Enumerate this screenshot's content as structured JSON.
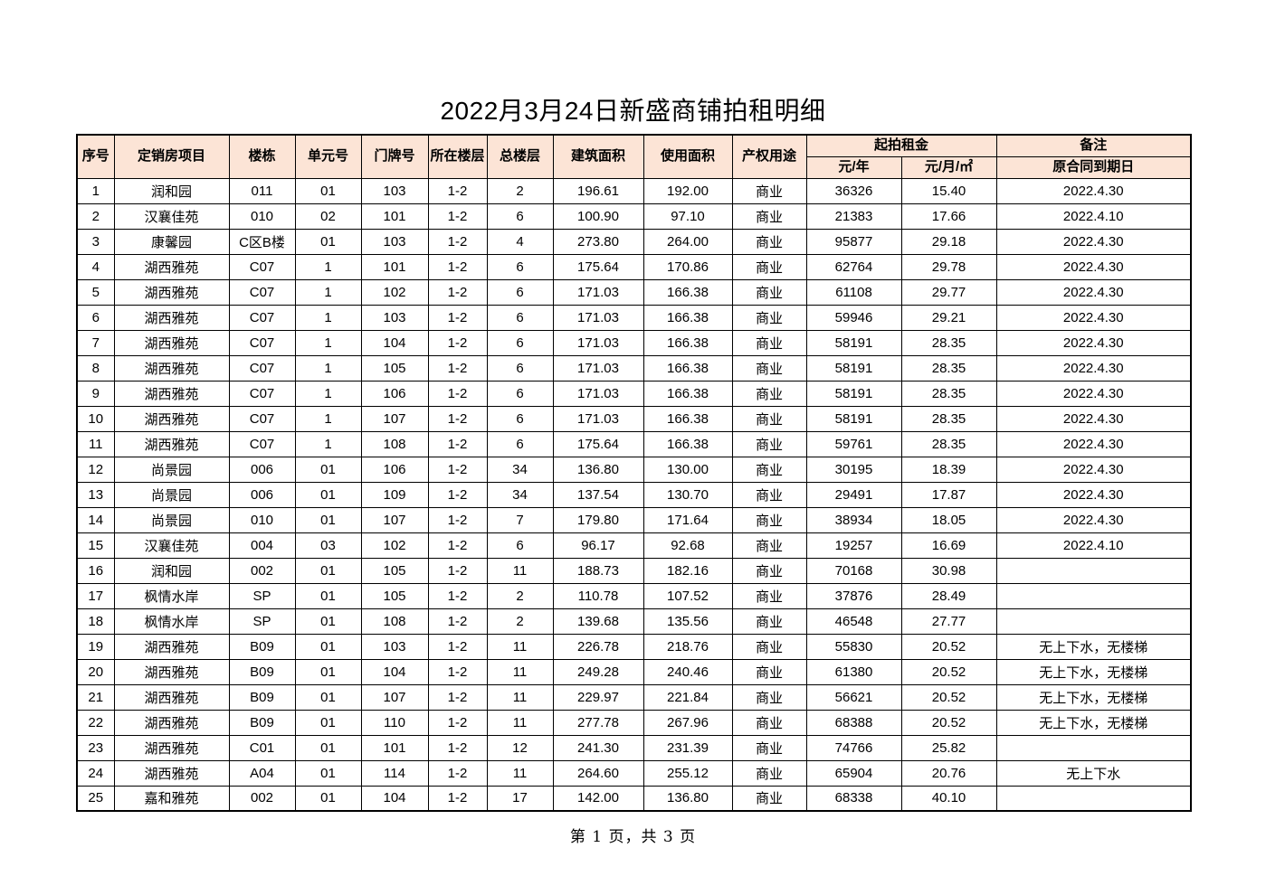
{
  "title": "2022月3月24日新盛商铺拍租明细",
  "footer": "第 1 页，共 3 页",
  "colors": {
    "header_bg": "#fce4d6",
    "border": "#000000",
    "text": "#000000",
    "page_bg": "#ffffff"
  },
  "table": {
    "headers": {
      "xuhao": "序号",
      "project": "定销房项目",
      "building": "楼栋",
      "unit": "单元号",
      "door": "门牌号",
      "floor": "所在楼层",
      "total_floors": "总楼层",
      "build_area": "建筑面积",
      "use_area": "使用面积",
      "usage": "产权用途",
      "rent_group": "起拍租金",
      "rent_year": "元/年",
      "rent_month": "元/月/㎡",
      "remark_group": "备注",
      "remark_sub": "原合同到期日"
    },
    "rows": [
      [
        "1",
        "润和园",
        "011",
        "01",
        "103",
        "1-2",
        "2",
        "196.61",
        "192.00",
        "商业",
        "36326",
        "15.40",
        "2022.4.30"
      ],
      [
        "2",
        "汉襄佳苑",
        "010",
        "02",
        "101",
        "1-2",
        "6",
        "100.90",
        "97.10",
        "商业",
        "21383",
        "17.66",
        "2022.4.10"
      ],
      [
        "3",
        "康馨园",
        "C区B楼",
        "01",
        "103",
        "1-2",
        "4",
        "273.80",
        "264.00",
        "商业",
        "95877",
        "29.18",
        "2022.4.30"
      ],
      [
        "4",
        "湖西雅苑",
        "C07",
        "1",
        "101",
        "1-2",
        "6",
        "175.64",
        "170.86",
        "商业",
        "62764",
        "29.78",
        "2022.4.30"
      ],
      [
        "5",
        "湖西雅苑",
        "C07",
        "1",
        "102",
        "1-2",
        "6",
        "171.03",
        "166.38",
        "商业",
        "61108",
        "29.77",
        "2022.4.30"
      ],
      [
        "6",
        "湖西雅苑",
        "C07",
        "1",
        "103",
        "1-2",
        "6",
        "171.03",
        "166.38",
        "商业",
        "59946",
        "29.21",
        "2022.4.30"
      ],
      [
        "7",
        "湖西雅苑",
        "C07",
        "1",
        "104",
        "1-2",
        "6",
        "171.03",
        "166.38",
        "商业",
        "58191",
        "28.35",
        "2022.4.30"
      ],
      [
        "8",
        "湖西雅苑",
        "C07",
        "1",
        "105",
        "1-2",
        "6",
        "171.03",
        "166.38",
        "商业",
        "58191",
        "28.35",
        "2022.4.30"
      ],
      [
        "9",
        "湖西雅苑",
        "C07",
        "1",
        "106",
        "1-2",
        "6",
        "171.03",
        "166.38",
        "商业",
        "58191",
        "28.35",
        "2022.4.30"
      ],
      [
        "10",
        "湖西雅苑",
        "C07",
        "1",
        "107",
        "1-2",
        "6",
        "171.03",
        "166.38",
        "商业",
        "58191",
        "28.35",
        "2022.4.30"
      ],
      [
        "11",
        "湖西雅苑",
        "C07",
        "1",
        "108",
        "1-2",
        "6",
        "175.64",
        "166.38",
        "商业",
        "59761",
        "28.35",
        "2022.4.30"
      ],
      [
        "12",
        "尚景园",
        "006",
        "01",
        "106",
        "1-2",
        "34",
        "136.80",
        "130.00",
        "商业",
        "30195",
        "18.39",
        "2022.4.30"
      ],
      [
        "13",
        "尚景园",
        "006",
        "01",
        "109",
        "1-2",
        "34",
        "137.54",
        "130.70",
        "商业",
        "29491",
        "17.87",
        "2022.4.30"
      ],
      [
        "14",
        "尚景园",
        "010",
        "01",
        "107",
        "1-2",
        "7",
        "179.80",
        "171.64",
        "商业",
        "38934",
        "18.05",
        "2022.4.30"
      ],
      [
        "15",
        "汉襄佳苑",
        "004",
        "03",
        "102",
        "1-2",
        "6",
        "96.17",
        "92.68",
        "商业",
        "19257",
        "16.69",
        "2022.4.10"
      ],
      [
        "16",
        "润和园",
        "002",
        "01",
        "105",
        "1-2",
        "11",
        "188.73",
        "182.16",
        "商业",
        "70168",
        "30.98",
        ""
      ],
      [
        "17",
        "枫情水岸",
        "SP",
        "01",
        "105",
        "1-2",
        "2",
        "110.78",
        "107.52",
        "商业",
        "37876",
        "28.49",
        ""
      ],
      [
        "18",
        "枫情水岸",
        "SP",
        "01",
        "108",
        "1-2",
        "2",
        "139.68",
        "135.56",
        "商业",
        "46548",
        "27.77",
        ""
      ],
      [
        "19",
        "湖西雅苑",
        "B09",
        "01",
        "103",
        "1-2",
        "11",
        "226.78",
        "218.76",
        "商业",
        "55830",
        "20.52",
        "无上下水，无楼梯"
      ],
      [
        "20",
        "湖西雅苑",
        "B09",
        "01",
        "104",
        "1-2",
        "11",
        "249.28",
        "240.46",
        "商业",
        "61380",
        "20.52",
        "无上下水，无楼梯"
      ],
      [
        "21",
        "湖西雅苑",
        "B09",
        "01",
        "107",
        "1-2",
        "11",
        "229.97",
        "221.84",
        "商业",
        "56621",
        "20.52",
        "无上下水，无楼梯"
      ],
      [
        "22",
        "湖西雅苑",
        "B09",
        "01",
        "110",
        "1-2",
        "11",
        "277.78",
        "267.96",
        "商业",
        "68388",
        "20.52",
        "无上下水，无楼梯"
      ],
      [
        "23",
        "湖西雅苑",
        "C01",
        "01",
        "101",
        "1-2",
        "12",
        "241.30",
        "231.39",
        "商业",
        "74766",
        "25.82",
        ""
      ],
      [
        "24",
        "湖西雅苑",
        "A04",
        "01",
        "114",
        "1-2",
        "11",
        "264.60",
        "255.12",
        "商业",
        "65904",
        "20.76",
        "无上下水"
      ],
      [
        "25",
        "嘉和雅苑",
        "002",
        "01",
        "104",
        "1-2",
        "17",
        "142.00",
        "136.80",
        "商业",
        "68338",
        "40.10",
        ""
      ]
    ]
  }
}
